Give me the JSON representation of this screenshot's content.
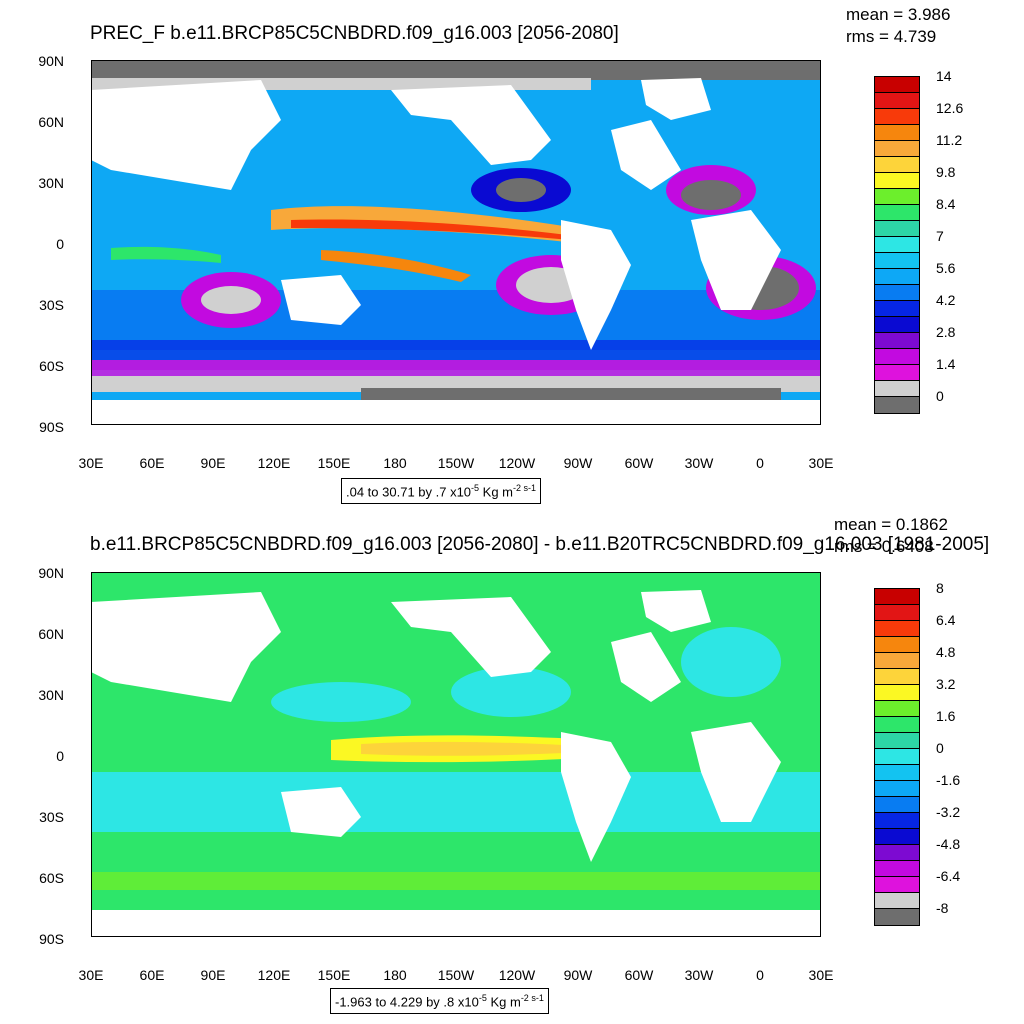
{
  "top": {
    "title": "PREC_F b.e11.BRCP85C5CNBDRD.f09_g16.003 [2056-2080]",
    "mean": "mean = 3.986",
    "rms": "rms = 4.739",
    "range_text": ".04 to 30.71 by .7 x10",
    "range_exp": "-5",
    "range_units": " Kg m",
    "range_units_exp": "-2 s-1",
    "colorbar_labels": [
      "14",
      "12.6",
      "11.2",
      "9.8",
      "8.4",
      "7",
      "5.6",
      "4.2",
      "2.8",
      "1.4",
      "0"
    ],
    "colorbar_colors": [
      "#c80000",
      "#e21515",
      "#f83a0a",
      "#f6860d",
      "#f8a83a",
      "#fdd43a",
      "#fbf823",
      "#6cef2c",
      "#2de66a",
      "#2dd6a6",
      "#2de6e4",
      "#13c3f1",
      "#0da8f6",
      "#087cf2",
      "#0626e4",
      "#0a0ad2",
      "#7d0ad2",
      "#c20ae0",
      "#de12dd",
      "#d0d0d0",
      "#6e6e6e"
    ]
  },
  "bottom": {
    "title": "b.e11.BRCP85C5CNBDRD.f09_g16.003 [2056-2080] - b.e11.B20TRC5CNBDRD.f09_g16.003 [1981-2005]",
    "mean": "mean = 0.1862",
    "rms": "rms = 0.6408",
    "range_text": "-1.963 to 4.229 by .8 x10",
    "range_exp": "-5",
    "range_units": " Kg m",
    "range_units_exp": "-2 s-1",
    "colorbar_labels": [
      "8",
      "6.4",
      "4.8",
      "3.2",
      "1.6",
      "0",
      "-1.6",
      "-3.2",
      "-4.8",
      "-6.4",
      "-8"
    ],
    "colorbar_colors": [
      "#c80000",
      "#e21515",
      "#f83a0a",
      "#f6860d",
      "#f8a83a",
      "#fdd43a",
      "#fbf823",
      "#6cef2c",
      "#2de66a",
      "#2dd6a6",
      "#2de6e4",
      "#13c3f1",
      "#0da8f6",
      "#087cf2",
      "#0626e4",
      "#0a0ad2",
      "#7d0ad2",
      "#c20ae0",
      "#de12dd",
      "#d0d0d0",
      "#6e6e6e"
    ]
  },
  "axes": {
    "lat_labels": [
      "90N",
      "60N",
      "30N",
      "0",
      "30S",
      "60S",
      "90S"
    ],
    "lon_labels": [
      "30E",
      "60E",
      "90E",
      "120E",
      "150E",
      "180",
      "150W",
      "120W",
      "90W",
      "60W",
      "30W",
      "0",
      "30E"
    ]
  }
}
